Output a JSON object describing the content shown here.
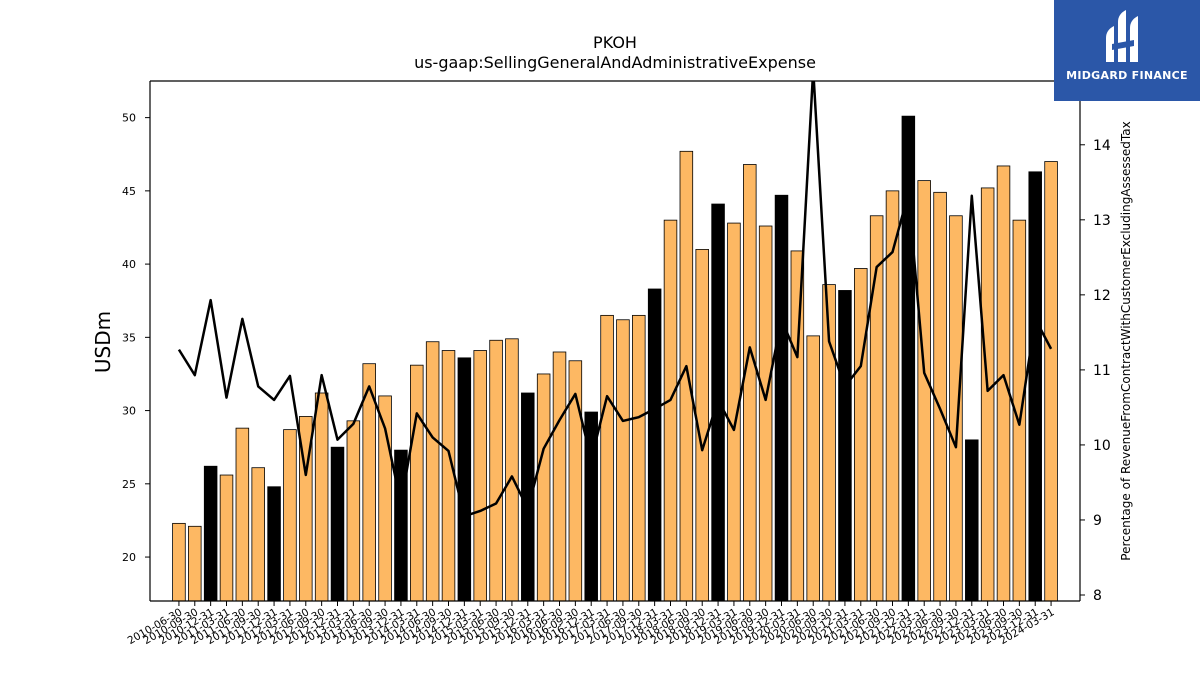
{
  "logo": {
    "text": "MIDGARD FINANCE"
  },
  "chart_data": {
    "type": "bar",
    "title": "PKOH",
    "subtitle": "us-gaap:SellingGeneralAndAdministrativeExpense",
    "ylabel": "USDm",
    "y2label": "Percentage of RevenueFromContractWithCustomerExcludingAssessedTax",
    "ylim": [
      17,
      52.5
    ],
    "y2lim": [
      7.92,
      14.85
    ],
    "yticks": [
      20,
      25,
      30,
      35,
      40,
      45,
      50
    ],
    "y2ticks": [
      8,
      9,
      10,
      11,
      12,
      13,
      14
    ],
    "bar_color": "#FDB863",
    "highlight_color": "#000000",
    "line_color": "#000000",
    "categories": [
      "2010-06-30",
      "2010-09-30",
      "2010-12-31",
      "2011-03-31",
      "2011-06-30",
      "2011-09-30",
      "2011-12-31",
      "2012-03-31",
      "2012-06-30",
      "2012-09-30",
      "2012-12-31",
      "2013-03-31",
      "2013-06-30",
      "2013-09-30",
      "2013-12-31",
      "2014-03-31",
      "2014-06-30",
      "2014-09-30",
      "2014-12-31",
      "2015-03-31",
      "2015-06-30",
      "2015-09-30",
      "2015-12-31",
      "2016-03-31",
      "2016-06-30",
      "2016-09-30",
      "2016-12-31",
      "2017-03-31",
      "2017-06-30",
      "2017-09-30",
      "2017-12-31",
      "2018-03-31",
      "2018-06-30",
      "2018-09-30",
      "2018-12-31",
      "2019-03-31",
      "2019-06-30",
      "2019-09-30",
      "2019-12-31",
      "2020-03-31",
      "2020-06-30",
      "2020-09-30",
      "2020-12-31",
      "2021-03-31",
      "2021-06-30",
      "2021-09-30",
      "2021-12-31",
      "2022-03-31",
      "2022-06-30",
      "2022-09-30",
      "2022-12-31",
      "2023-03-31",
      "2023-06-30",
      "2023-09-30",
      "2023-12-31",
      "2024-03-31"
    ],
    "series": [
      {
        "type": "bar",
        "values": [
          22.3,
          22.1,
          26.2,
          25.6,
          28.8,
          26.1,
          24.8,
          28.7,
          29.6,
          31.2,
          27.5,
          29.3,
          33.2,
          31.0,
          27.3,
          33.1,
          34.7,
          34.1,
          33.6,
          34.1,
          34.8,
          34.9,
          31.2,
          32.5,
          34.0,
          33.4,
          29.9,
          36.5,
          36.2,
          36.5,
          38.3,
          43.0,
          47.7,
          41.0,
          44.1,
          42.8,
          46.8,
          42.6,
          44.7,
          40.9,
          35.1,
          38.6,
          38.2,
          39.7,
          43.3,
          45.0,
          50.1,
          45.7,
          44.9,
          43.3,
          28.0,
          45.2,
          46.7,
          43.0,
          46.3,
          47.0
        ],
        "highlight": [
          false,
          false,
          true,
          false,
          false,
          false,
          true,
          false,
          false,
          false,
          true,
          false,
          false,
          false,
          true,
          false,
          false,
          false,
          true,
          false,
          false,
          false,
          true,
          false,
          false,
          false,
          true,
          false,
          false,
          false,
          true,
          false,
          false,
          false,
          true,
          false,
          false,
          false,
          true,
          false,
          false,
          false,
          true,
          false,
          false,
          false,
          true,
          false,
          false,
          false,
          true,
          false,
          false,
          false,
          true,
          false
        ]
      },
      {
        "type": "line",
        "axis": "right",
        "values": [
          11.27,
          10.93,
          11.93,
          10.63,
          11.68,
          10.78,
          10.6,
          10.92,
          9.6,
          10.93,
          10.07,
          10.28,
          10.78,
          10.22,
          9.22,
          10.42,
          10.1,
          9.92,
          9.05,
          9.12,
          9.22,
          9.58,
          9.15,
          9.95,
          10.33,
          10.68,
          9.81,
          10.65,
          10.32,
          10.37,
          10.48,
          10.6,
          11.05,
          9.93,
          10.6,
          10.2,
          11.3,
          10.6,
          11.67,
          11.17,
          15.0,
          11.38,
          10.78,
          11.05,
          12.37,
          12.57,
          13.35,
          10.96,
          10.48,
          9.97,
          13.32,
          10.72,
          10.93,
          10.27,
          11.68,
          11.28
        ]
      }
    ]
  }
}
